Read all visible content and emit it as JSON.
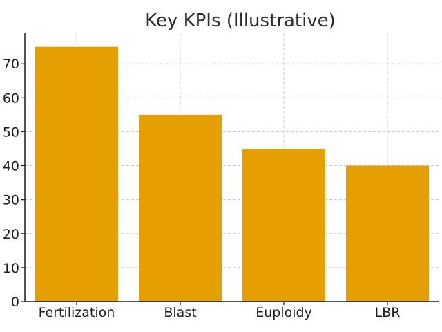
{
  "chart_data": {
    "type": "bar",
    "title": "Key KPIs (Illustrative)",
    "categories": [
      "Fertilization",
      "Blast",
      "Euploidy",
      "LBR"
    ],
    "values": [
      75,
      55,
      45,
      40
    ],
    "xlabel": "",
    "ylabel": "",
    "ylim": [
      0,
      79
    ],
    "yticks": [
      0,
      10,
      20,
      30,
      40,
      50,
      60,
      70
    ],
    "grid": true,
    "bar_color": "#E69F00",
    "legend": "none"
  }
}
